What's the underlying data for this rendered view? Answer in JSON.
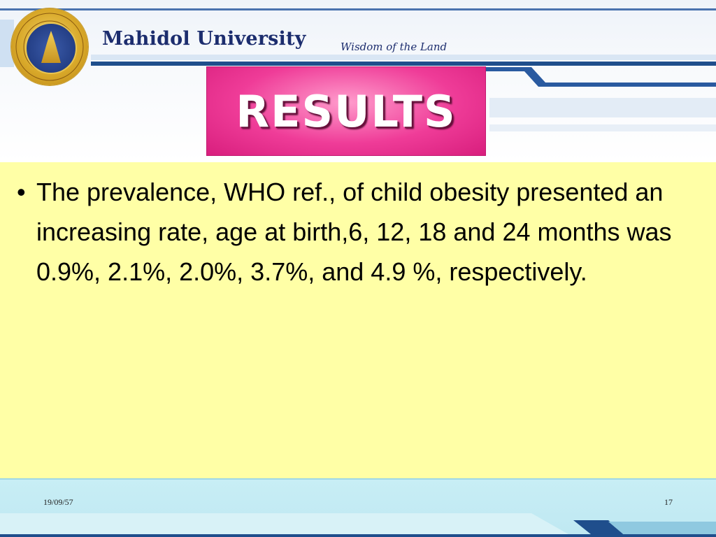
{
  "header": {
    "university_name": "Mahidol University",
    "tagline": "Wisdom of the Land",
    "logo_label": "Mahidol University seal",
    "banner_text": "RESULTS"
  },
  "content": {
    "bullets": [
      "The prevalence, WHO ref., of child obesity presented an increasing rate, age at birth,6, 12, 18 and 24  months was 0.9%, 2.1%, 2.0%, 3.7%, and 4.9 %, respectively."
    ]
  },
  "footer": {
    "date": "19/09/57",
    "page_number": "17"
  },
  "colors": {
    "content_background": "#ffffa6",
    "banner_pink": "#ef3c98",
    "navy": "#1c2d6e",
    "footer_blue": "#c8eef5",
    "stripe_blue": "#1f4e8c"
  }
}
